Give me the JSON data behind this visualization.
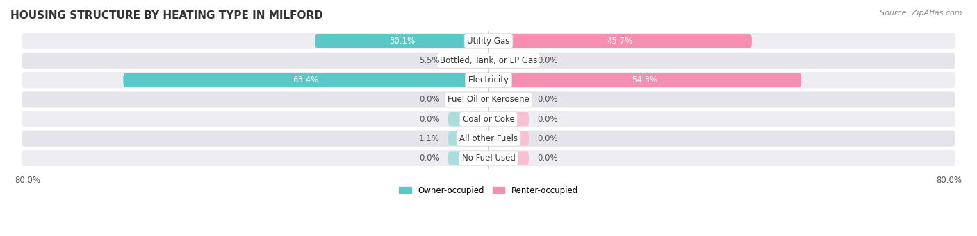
{
  "title": "HOUSING STRUCTURE BY HEATING TYPE IN MILFORD",
  "source": "Source: ZipAtlas.com",
  "categories": [
    "Utility Gas",
    "Bottled, Tank, or LP Gas",
    "Electricity",
    "Fuel Oil or Kerosene",
    "Coal or Coke",
    "All other Fuels",
    "No Fuel Used"
  ],
  "owner_values": [
    30.1,
    5.5,
    63.4,
    0.0,
    0.0,
    1.1,
    0.0
  ],
  "renter_values": [
    45.7,
    0.0,
    54.3,
    0.0,
    0.0,
    0.0,
    0.0
  ],
  "owner_color": "#5bc8c8",
  "renter_color": "#f48fb1",
  "owner_color_light": "#a8dede",
  "renter_color_light": "#f9c0d4",
  "label_color_dark": "#555555",
  "label_color_white": "#ffffff",
  "row_bg_color_odd": "#ededf2",
  "row_bg_color_even": "#e4e4ea",
  "axis_limit": 80.0,
  "title_fontsize": 11,
  "source_fontsize": 8,
  "label_fontsize": 8.5,
  "category_fontsize": 8.5,
  "legend_fontsize": 8.5,
  "background_color": "#ffffff"
}
